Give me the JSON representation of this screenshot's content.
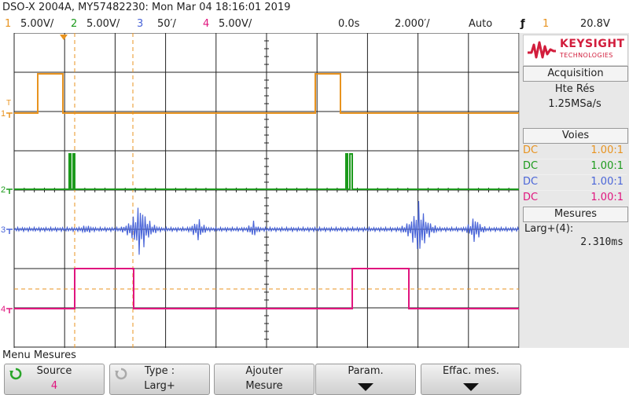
{
  "title": "DSO-X 2004A, MY57482230: Mon Mar 04 18:16:01 2019",
  "channels": [
    {
      "num": "1",
      "scale": "5.00V/",
      "color": "#e8931f"
    },
    {
      "num": "2",
      "scale": "5.00V/",
      "color": "#1c9a1c"
    },
    {
      "num": "3",
      "scale": "50′/",
      "color": "#4a65d8"
    },
    {
      "num": "4",
      "scale": "5.00V/",
      "color": "#e0157e"
    }
  ],
  "timebase": {
    "delay": "0.0s",
    "scale": "2.000′/",
    "trigger_mode": "Auto",
    "trigger_channel": "1",
    "trigger_level": "20.8V"
  },
  "logo": {
    "word": "KEYSIGHT",
    "sub": "TECHNOLOGIES"
  },
  "acquisition": {
    "title": "Acquisition",
    "mode": "Hte Rés",
    "rate": "1.25MSa/s"
  },
  "voies": {
    "title": "Voies",
    "rows": [
      {
        "coupling": "DC",
        "ratio": "1.00:1",
        "color": "#e8931f"
      },
      {
        "coupling": "DC",
        "ratio": "1.00:1",
        "color": "#1c9a1c"
      },
      {
        "coupling": "DC",
        "ratio": "1.00:1",
        "color": "#4a65d8"
      },
      {
        "coupling": "DC",
        "ratio": "1.00:1",
        "color": "#e0157e"
      }
    ]
  },
  "mesures": {
    "title": "Mesures",
    "label": "Larg+(4):",
    "value": "2.310ms"
  },
  "menu_label": "Menu Mesures",
  "softkeys": [
    {
      "line1": "Source",
      "line2": "4"
    },
    {
      "line1": "Type :",
      "line2": "Larg+"
    },
    {
      "line1": "Ajouter",
      "line2": "Mesure"
    },
    {
      "line1": "Param.",
      "line2": ""
    },
    {
      "line1": "Effac. mes.",
      "line2": ""
    }
  ],
  "ground_markers": [
    "1",
    "2",
    "3",
    "4"
  ],
  "trigger_marker": "T"
}
